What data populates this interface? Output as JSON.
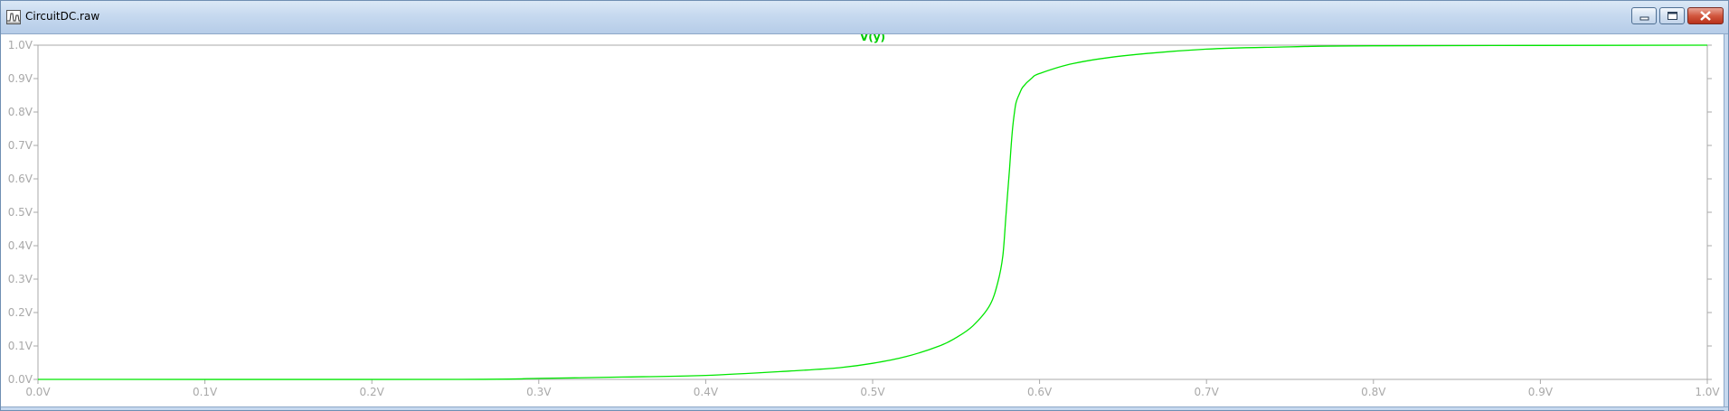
{
  "window": {
    "title": "CircuitDC.raw",
    "app_icon": "waveform-icon",
    "buttons": {
      "minimize_icon": "minimize-icon",
      "maximize_icon": "restore-icon",
      "close_icon": "close-icon"
    }
  },
  "colors": {
    "trace": "#00e600",
    "axis": "#a9a9a9",
    "title_text": "#00cc00",
    "background": "#ffffff"
  },
  "chart_data": {
    "type": "line",
    "title": "V(y)",
    "xlabel": "",
    "ylabel": "",
    "xlim": [
      0.0,
      1.0
    ],
    "ylim": [
      0.0,
      1.0
    ],
    "x_ticks": [
      "0.0V",
      "0.1V",
      "0.2V",
      "0.3V",
      "0.4V",
      "0.5V",
      "0.6V",
      "0.7V",
      "0.8V",
      "0.9V",
      "1.0V"
    ],
    "y_ticks": [
      "0.0V",
      "0.1V",
      "0.2V",
      "0.3V",
      "0.4V",
      "0.5V",
      "0.6V",
      "0.7V",
      "0.8V",
      "0.9V",
      "1.0V"
    ],
    "grid": false,
    "series": [
      {
        "name": "V(y)",
        "x": [
          0.0,
          0.25,
          0.3,
          0.35,
          0.4,
          0.45,
          0.48,
          0.5,
          0.52,
          0.54,
          0.55,
          0.56,
          0.57,
          0.575,
          0.578,
          0.58,
          0.582,
          0.583,
          0.584,
          0.585,
          0.586,
          0.588,
          0.59,
          0.595,
          0.6,
          0.62,
          0.65,
          0.7,
          0.75,
          0.8,
          1.0
        ],
        "y": [
          0.0,
          0.0,
          0.003,
          0.007,
          0.012,
          0.025,
          0.035,
          0.048,
          0.068,
          0.1,
          0.125,
          0.16,
          0.22,
          0.29,
          0.37,
          0.5,
          0.63,
          0.7,
          0.76,
          0.8,
          0.83,
          0.855,
          0.875,
          0.9,
          0.915,
          0.945,
          0.968,
          0.988,
          0.995,
          0.998,
          1.0
        ]
      }
    ]
  }
}
